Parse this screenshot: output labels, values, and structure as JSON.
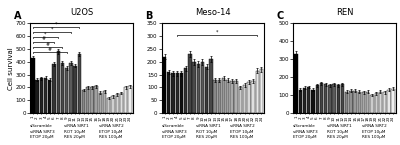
{
  "chart_data": [
    {
      "type": "bar",
      "panel_label": "A",
      "title": "U2OS",
      "y_label": "Cell survival",
      "categories": [
        "1",
        "2",
        "3",
        "4",
        "5",
        "6",
        "7",
        "8",
        "9",
        "10",
        "11",
        "12",
        "13",
        "14",
        "15",
        "16",
        "17",
        "18",
        "19",
        "20",
        "21",
        "22",
        "23",
        "24"
      ],
      "values": [
        430,
        260,
        270,
        275,
        260,
        380,
        480,
        390,
        350,
        390,
        370,
        460,
        180,
        200,
        200,
        210,
        160,
        170,
        120,
        130,
        145,
        155,
        200,
        210
      ],
      "errors": [
        15,
        12,
        12,
        12,
        12,
        15,
        18,
        15,
        14,
        15,
        14,
        18,
        10,
        11,
        11,
        11,
        10,
        10,
        9,
        9,
        10,
        10,
        11,
        11
      ],
      "colors": [
        "#000000",
        "#1a1a1a",
        "#222222",
        "#2a2a2a",
        "#111111",
        "#333333",
        "#444444",
        "#4a4a4a",
        "#555555",
        "#5a5a5a",
        "#3a3a3a",
        "#484848",
        "#888888",
        "#909090",
        "#999999",
        "#a0a0a0",
        "#aaaaaa",
        "#b0b0b0",
        "#cccccc",
        "#d0d0d0",
        "#d8d8d8",
        "#e0e0e0",
        "#e8e8e8",
        "#f0f0f0"
      ],
      "ylim": [
        0,
        700
      ],
      "yticks": [
        0,
        100,
        200,
        300,
        400,
        500,
        600,
        700
      ],
      "brackets": [
        {
          "from": "1",
          "to": "7",
          "y": 595,
          "label": "*"
        },
        {
          "from": "1",
          "to": "10",
          "y": 635,
          "label": "*"
        },
        {
          "from": "1",
          "to": "12",
          "y": 670,
          "label": "*"
        },
        {
          "from": "1",
          "to": "6",
          "y": 555,
          "label": "#"
        },
        {
          "from": "1",
          "to": "8",
          "y": 515,
          "label": "#"
        },
        {
          "from": "1",
          "to": "9",
          "y": 475,
          "label": "#"
        }
      ],
      "row_labels": [
        "siScramble",
        "siRNA SIRT1",
        "siRNA SIRT2",
        "siRNA SIRT3",
        "ROT 10μM",
        "ETOP 10μM",
        "ETOP 20μM",
        "RES 20μM",
        "RES 100μM"
      ]
    },
    {
      "type": "bar",
      "panel_label": "B",
      "title": "Meso-14",
      "categories": [
        "1",
        "2",
        "3",
        "4",
        "5",
        "6",
        "7",
        "8",
        "9",
        "10",
        "11",
        "12",
        "13",
        "14",
        "15",
        "16",
        "17",
        "18",
        "19",
        "20",
        "21",
        "22",
        "23",
        "24"
      ],
      "values": [
        220,
        160,
        155,
        155,
        155,
        175,
        230,
        200,
        190,
        200,
        180,
        210,
        130,
        130,
        135,
        130,
        125,
        125,
        100,
        110,
        120,
        125,
        165,
        170
      ],
      "errors": [
        10,
        9,
        9,
        9,
        9,
        10,
        12,
        11,
        11,
        11,
        10,
        12,
        8,
        8,
        8,
        8,
        8,
        8,
        7,
        7,
        8,
        8,
        9,
        9
      ],
      "colors": [
        "#000000",
        "#1a1a1a",
        "#222222",
        "#2a2a2a",
        "#111111",
        "#333333",
        "#444444",
        "#4a4a4a",
        "#555555",
        "#5a5a5a",
        "#3a3a3a",
        "#484848",
        "#888888",
        "#909090",
        "#999999",
        "#a0a0a0",
        "#aaaaaa",
        "#b0b0b0",
        "#cccccc",
        "#d0d0d0",
        "#d8d8d8",
        "#e0e0e0",
        "#e8e8e8",
        "#f0f0f0"
      ],
      "ylim": [
        0,
        350
      ],
      "yticks": [
        0,
        50,
        100,
        150,
        200,
        250,
        300,
        350
      ],
      "brackets": [
        {
          "from": "4",
          "to": "23",
          "y": 305,
          "label": "*"
        }
      ],
      "row_labels": [
        "siScramble",
        "siRNA SIRT1",
        "siRNA SIRT2",
        "siRNA SIRT3",
        "ROT 10μM",
        "ETOP 10μM",
        "ETOP 20μM",
        "RES 20μM",
        "RES 100μM"
      ]
    },
    {
      "type": "bar",
      "panel_label": "C",
      "title": "REN",
      "categories": [
        "1",
        "2",
        "3",
        "4",
        "5",
        "6",
        "7",
        "8",
        "9",
        "10",
        "11",
        "12",
        "13",
        "14",
        "15",
        "16",
        "17",
        "18",
        "19",
        "20",
        "21",
        "22",
        "23",
        "24"
      ],
      "values": [
        330,
        130,
        140,
        145,
        130,
        155,
        165,
        160,
        155,
        160,
        155,
        160,
        120,
        125,
        125,
        120,
        115,
        120,
        100,
        110,
        120,
        115,
        130,
        135
      ],
      "errors": [
        14,
        8,
        8,
        8,
        8,
        9,
        9,
        9,
        9,
        9,
        9,
        9,
        8,
        8,
        8,
        8,
        8,
        8,
        7,
        7,
        8,
        8,
        8,
        8
      ],
      "colors": [
        "#000000",
        "#1a1a1a",
        "#222222",
        "#2a2a2a",
        "#111111",
        "#333333",
        "#444444",
        "#4a4a4a",
        "#555555",
        "#5a5a5a",
        "#3a3a3a",
        "#484848",
        "#888888",
        "#909090",
        "#999999",
        "#a0a0a0",
        "#aaaaaa",
        "#b0b0b0",
        "#cccccc",
        "#d0d0d0",
        "#d8d8d8",
        "#e0e0e0",
        "#e8e8e8",
        "#f0f0f0"
      ],
      "ylim": [
        0,
        500
      ],
      "yticks": [
        0,
        100,
        200,
        300,
        400,
        500
      ],
      "row_labels": [
        "siScramble",
        "siRNA SIRT1",
        "siRNA SIRT2",
        "siRNA SIRT3",
        "ROT 10μM",
        "ETOP 10μM",
        "ETOP 20μM",
        "RES 20μM",
        "RES 100μM"
      ]
    }
  ]
}
